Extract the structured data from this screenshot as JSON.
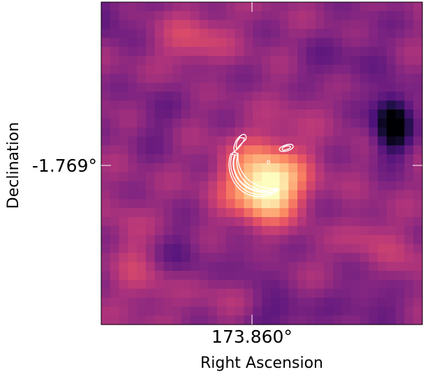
{
  "chart_data": {
    "type": "heatmap",
    "colormap": "magma",
    "xlabel": "Right Ascension",
    "ylabel": "Declination",
    "x_ticks": [
      "173.860°"
    ],
    "y_ticks": [
      "-1.769°"
    ],
    "grid": false,
    "legend": "none",
    "contour_color": "#ffffff",
    "grid_size": [
      36,
      36
    ],
    "bright_source": {
      "center_cell": [
        18.5,
        20.0
      ],
      "peak": 0.95
    },
    "arc_contour": "crescent arc with small knot",
    "noise_field": "smooth mottled background, dark spot right-centre"
  }
}
